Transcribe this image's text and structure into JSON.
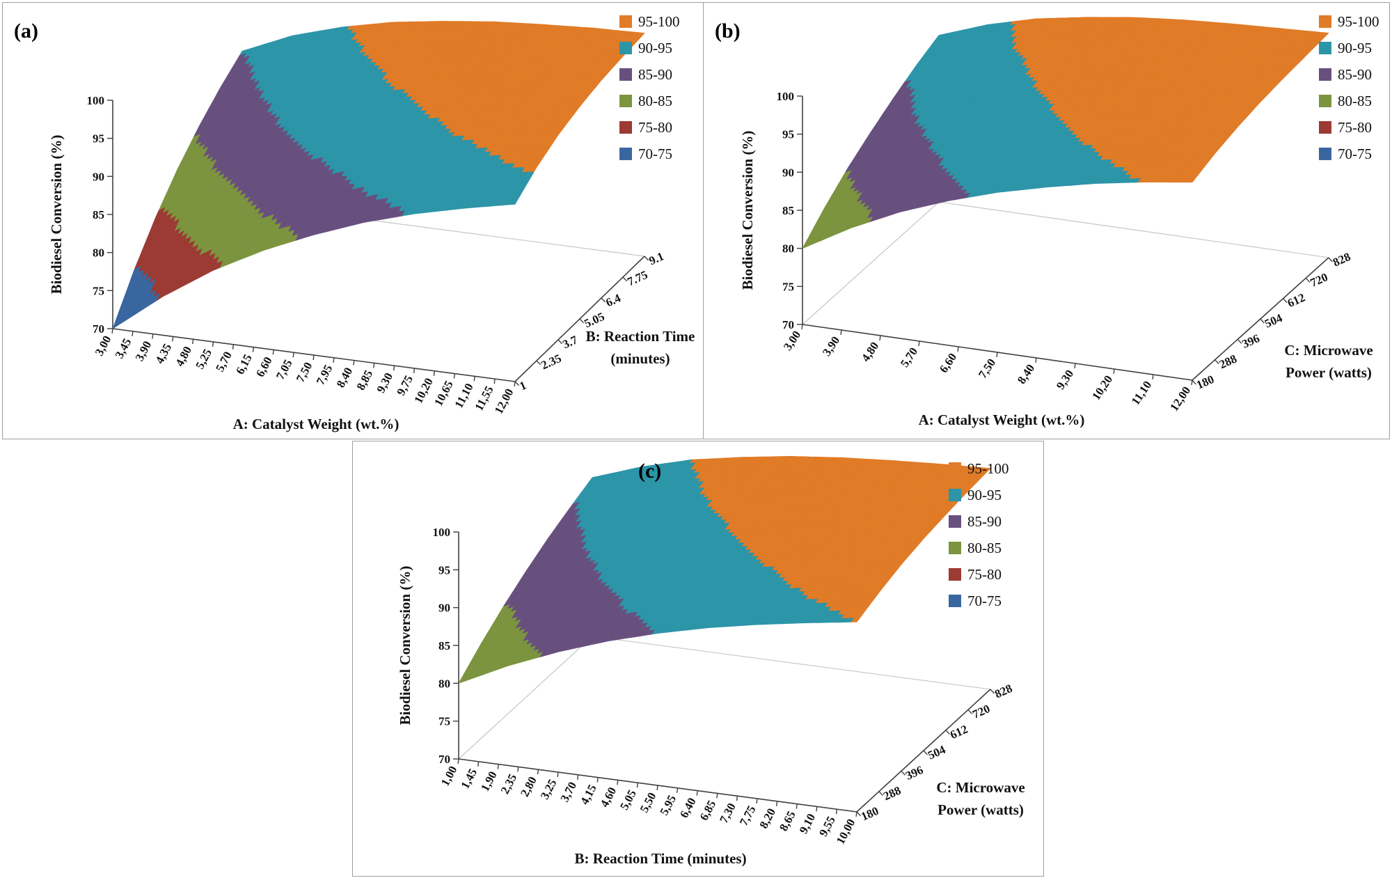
{
  "legend": {
    "entries": [
      {
        "label": "95-100",
        "color": "#E07B27"
      },
      {
        "label": "90-95",
        "color": "#2D95A8"
      },
      {
        "label": "85-90",
        "color": "#68507E"
      },
      {
        "label": "80-85",
        "color": "#7C943F"
      },
      {
        "label": "75-80",
        "color": "#9C3A34"
      },
      {
        "label": "70-75",
        "color": "#3A66A0"
      }
    ]
  },
  "chart_data": [
    {
      "type": "surface",
      "panel_label": "(a)",
      "title": "",
      "xlabel": "A: Catalyst Weight (wt.%)",
      "x_ticks": [
        "3,00",
        "3,45",
        "3,90",
        "4,35",
        "4,80",
        "5,25",
        "5,70",
        "6,15",
        "6,60",
        "7,05",
        "7,50",
        "7,95",
        "8,40",
        "8,85",
        "9,30",
        "9,75",
        "10,20",
        "10,65",
        "11,10",
        "11,55",
        "12,00"
      ],
      "ylabel_lines": [
        "B: Reaction Time",
        "(minutes)"
      ],
      "y_ticks": [
        "1",
        "2.35",
        "3.7",
        "5.05",
        "6.4",
        "7.75",
        "9.1"
      ],
      "zlabel": "Biodiesel Conversion (%)",
      "z_ticks": [
        "70",
        "75",
        "80",
        "85",
        "90",
        "95",
        "100"
      ],
      "zlim": [
        70,
        100
      ],
      "band_size": 5,
      "legend_position": "top-right",
      "grid": false,
      "surface_z": [
        [
          70.0,
          75.1,
          79.4,
          82.9,
          85.8,
          88.3,
          90.3,
          91.9,
          93.3
        ],
        [
          75.0,
          79.8,
          83.7,
          86.8,
          89.3,
          91.4,
          93.0,
          94.4,
          95.4
        ],
        [
          79.2,
          83.6,
          87.1,
          89.8,
          92.0,
          93.7,
          95.0,
          96.1,
          96.9
        ],
        [
          82.7,
          86.7,
          89.8,
          92.1,
          93.9,
          95.3,
          96.4,
          97.2,
          97.9
        ],
        [
          85.6,
          89.2,
          91.9,
          93.9,
          95.4,
          96.6,
          97.4,
          98.1,
          98.6
        ],
        [
          88.0,
          91.2,
          93.6,
          95.3,
          96.6,
          97.5,
          98.2,
          98.7,
          99.0
        ],
        [
          90.0,
          92.9,
          94.9,
          96.4,
          97.4,
          98.2,
          98.7,
          99.1,
          99.3
        ]
      ]
    },
    {
      "type": "surface",
      "panel_label": "(b)",
      "title": "",
      "xlabel": "A: Catalyst Weight (wt.%)",
      "x_ticks": [
        "3,00",
        "3,90",
        "4,80",
        "5,70",
        "6,60",
        "7,50",
        "8,40",
        "9,30",
        "10,20",
        "11,10",
        "12,00"
      ],
      "ylabel_lines": [
        "C: Microwave",
        "Power (watts)"
      ],
      "y_ticks": [
        "180",
        "288",
        "396",
        "504",
        "612",
        "720",
        "828"
      ],
      "zlabel": "Biodiesel Conversion (%)",
      "z_ticks": [
        "70",
        "75",
        "80",
        "85",
        "90",
        "95",
        "100"
      ],
      "zlim": [
        70,
        100
      ],
      "band_size": 5,
      "legend_position": "top-right",
      "grid": false,
      "surface_z": [
        [
          80.0,
          83.6,
          86.6,
          89.0,
          91.0,
          92.6,
          94.0,
          95.1,
          96.0
        ],
        [
          82.8,
          86.2,
          89.0,
          91.2,
          92.9,
          94.4,
          95.5,
          96.4,
          97.1
        ],
        [
          85.2,
          88.4,
          90.9,
          92.9,
          94.5,
          95.7,
          96.6,
          97.3,
          97.9
        ],
        [
          87.2,
          90.3,
          92.6,
          94.3,
          95.6,
          96.7,
          97.5,
          98.1,
          98.5
        ],
        [
          89.0,
          91.8,
          93.9,
          95.4,
          96.6,
          97.4,
          98.1,
          98.6,
          98.9
        ],
        [
          90.6,
          93.1,
          95.0,
          96.3,
          97.3,
          98.0,
          98.6,
          99.0,
          99.2
        ],
        [
          91.9,
          94.2,
          95.9,
          97.0,
          97.9,
          98.5,
          98.9,
          99.2,
          99.5
        ]
      ]
    },
    {
      "type": "surface",
      "panel_label": "(c)",
      "title": "",
      "xlabel": "B: Reaction Time (minutes)",
      "x_ticks": [
        "1,00",
        "1,45",
        "1,90",
        "2,35",
        "2,80",
        "3,25",
        "3,70",
        "4,15",
        "4,60",
        "5,05",
        "5,50",
        "5,95",
        "6,40",
        "6,85",
        "7,30",
        "7,75",
        "8,20",
        "8,65",
        "9,10",
        "9,55",
        "10,00"
      ],
      "ylabel_lines": [
        "C: Microwave",
        "Power (watts)"
      ],
      "y_ticks": [
        "180",
        "288",
        "396",
        "504",
        "612",
        "720",
        "828"
      ],
      "zlabel": "Biodiesel Conversion (%)",
      "z_ticks": [
        "70",
        "75",
        "80",
        "85",
        "90",
        "95",
        "100"
      ],
      "zlim": [
        70,
        100
      ],
      "band_size": 5,
      "legend_position": "top-right",
      "grid": false,
      "surface_z": [
        [
          80.0,
          83.2,
          85.9,
          88.2,
          90.1,
          91.7,
          93.0,
          94.1,
          95.1
        ],
        [
          82.5,
          85.6,
          88.2,
          90.3,
          92.0,
          93.4,
          94.6,
          95.6,
          96.3
        ],
        [
          84.7,
          87.7,
          90.1,
          92.0,
          93.6,
          94.8,
          95.8,
          96.6,
          97.3
        ],
        [
          86.6,
          89.4,
          91.7,
          93.4,
          94.8,
          95.9,
          96.8,
          97.5,
          98.0
        ],
        [
          88.3,
          90.9,
          93.0,
          94.6,
          95.8,
          96.8,
          97.5,
          98.1,
          98.5
        ],
        [
          89.7,
          92.2,
          94.1,
          95.6,
          96.6,
          97.5,
          98.1,
          98.5,
          98.9
        ],
        [
          91.0,
          93.3,
          95.1,
          96.3,
          97.3,
          98.0,
          98.5,
          98.9,
          99.2
        ]
      ]
    }
  ]
}
